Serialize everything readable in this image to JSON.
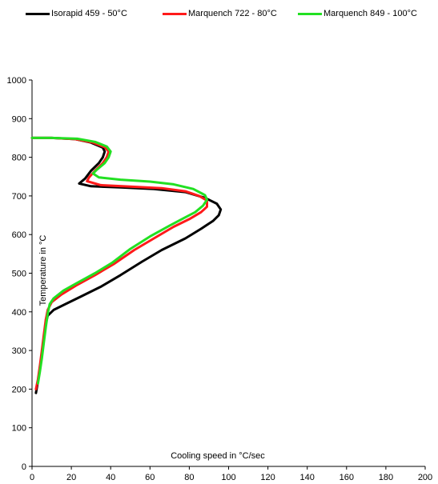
{
  "chart_data": {
    "type": "line",
    "title": "",
    "xlabel": "Cooling speed in °C/sec",
    "ylabel": "Temperature in °C",
    "xlim": [
      0,
      200
    ],
    "ylim": [
      0,
      1000
    ],
    "x_ticks": [
      "0",
      "20",
      "40",
      "60",
      "80",
      "100",
      "120",
      "140",
      "160",
      "180",
      "200"
    ],
    "y_ticks": [
      "0",
      "100",
      "200",
      "300",
      "400",
      "500",
      "600",
      "700",
      "800",
      "900",
      "1000"
    ],
    "grid": false,
    "legend_position": "top",
    "series": [
      {
        "name": "Isorapid 459 - 50°C",
        "color": "#000000",
        "points": [
          [
            0,
            850
          ],
          [
            10,
            850
          ],
          [
            22,
            847
          ],
          [
            30,
            838
          ],
          [
            36,
            825
          ],
          [
            37,
            815
          ],
          [
            36,
            800
          ],
          [
            34,
            785
          ],
          [
            30,
            765
          ],
          [
            27,
            745
          ],
          [
            24,
            732
          ],
          [
            30,
            725
          ],
          [
            45,
            722
          ],
          [
            62,
            718
          ],
          [
            78,
            710
          ],
          [
            88,
            695
          ],
          [
            94,
            680
          ],
          [
            96,
            665
          ],
          [
            95,
            650
          ],
          [
            92,
            635
          ],
          [
            86,
            615
          ],
          [
            78,
            590
          ],
          [
            66,
            560
          ],
          [
            56,
            530
          ],
          [
            45,
            495
          ],
          [
            35,
            465
          ],
          [
            25,
            440
          ],
          [
            17,
            420
          ],
          [
            11,
            405
          ],
          [
            8,
            390
          ],
          [
            7,
            370
          ],
          [
            6,
            330
          ],
          [
            5,
            290
          ],
          [
            4,
            250
          ],
          [
            3,
            220
          ],
          [
            2,
            190
          ]
        ]
      },
      {
        "name": "Marquench 722 - 80°C",
        "color": "#ff1a1a",
        "points": [
          [
            0,
            850
          ],
          [
            10,
            850
          ],
          [
            22,
            847
          ],
          [
            31,
            838
          ],
          [
            37,
            826
          ],
          [
            39,
            815
          ],
          [
            38,
            800
          ],
          [
            36,
            785
          ],
          [
            32,
            765
          ],
          [
            29,
            748
          ],
          [
            28,
            738
          ],
          [
            35,
            728
          ],
          [
            50,
            724
          ],
          [
            66,
            720
          ],
          [
            78,
            712
          ],
          [
            85,
            700
          ],
          [
            89,
            688
          ],
          [
            89,
            672
          ],
          [
            86,
            658
          ],
          [
            80,
            640
          ],
          [
            72,
            620
          ],
          [
            62,
            590
          ],
          [
            52,
            560
          ],
          [
            42,
            525
          ],
          [
            32,
            495
          ],
          [
            23,
            470
          ],
          [
            15,
            445
          ],
          [
            10,
            425
          ],
          [
            8,
            405
          ],
          [
            7,
            380
          ],
          [
            6,
            340
          ],
          [
            5,
            300
          ],
          [
            4,
            260
          ],
          [
            3,
            225
          ],
          [
            2,
            200
          ]
        ]
      },
      {
        "name": "Marquench 849 - 100°C",
        "color": "#22e022",
        "points": [
          [
            0,
            850
          ],
          [
            10,
            850
          ],
          [
            23,
            848
          ],
          [
            32,
            840
          ],
          [
            38,
            828
          ],
          [
            40,
            815
          ],
          [
            39,
            800
          ],
          [
            37,
            785
          ],
          [
            33,
            768
          ],
          [
            31,
            758
          ],
          [
            34,
            748
          ],
          [
            45,
            742
          ],
          [
            60,
            737
          ],
          [
            72,
            730
          ],
          [
            82,
            718
          ],
          [
            88,
            702
          ],
          [
            89,
            690
          ],
          [
            87,
            675
          ],
          [
            83,
            658
          ],
          [
            77,
            642
          ],
          [
            70,
            623
          ],
          [
            60,
            595
          ],
          [
            50,
            563
          ],
          [
            41,
            528
          ],
          [
            32,
            500
          ],
          [
            23,
            475
          ],
          [
            16,
            455
          ],
          [
            11,
            435
          ],
          [
            9,
            420
          ],
          [
            8,
            395
          ],
          [
            7,
            360
          ],
          [
            6,
            320
          ],
          [
            5,
            280
          ],
          [
            4,
            245
          ],
          [
            3,
            215
          ]
        ]
      }
    ]
  }
}
